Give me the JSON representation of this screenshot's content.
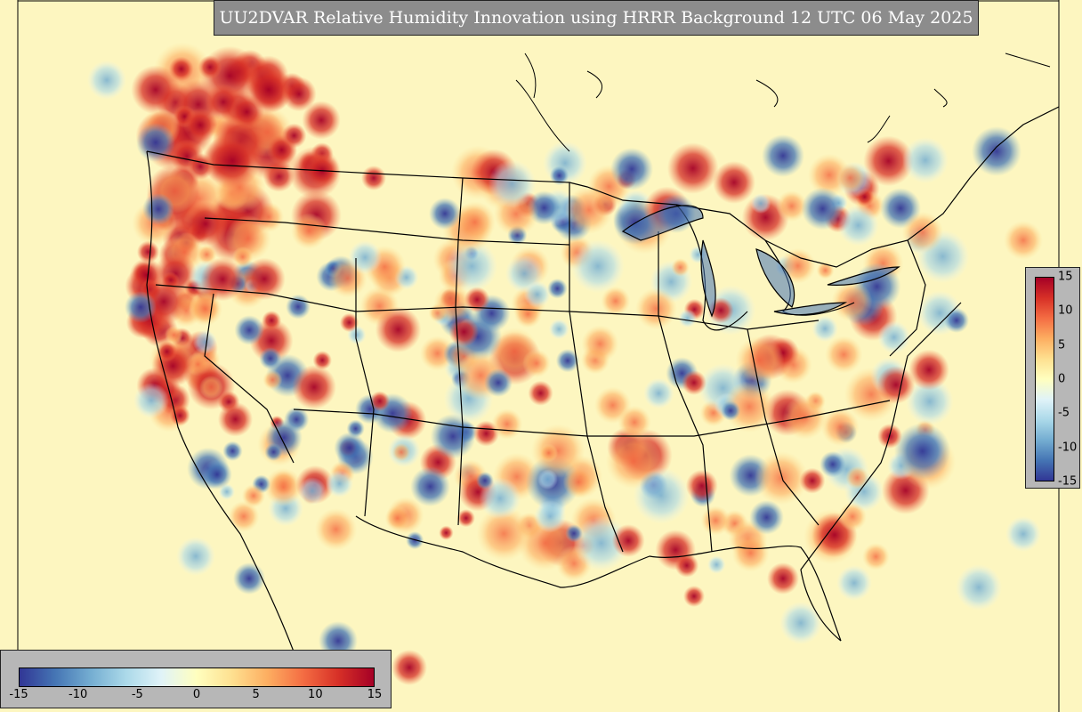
{
  "title": "UU2DVAR Relative Humidity Innovation using HRRR Background 12 UTC 06 May 2025",
  "colorbar": {
    "ticks_horizontal": [
      "-15",
      "-10",
      "-5",
      "0",
      "5",
      "10",
      "15"
    ],
    "ticks_vertical": [
      "15",
      "10",
      "5",
      "0",
      "-5",
      "-10",
      "-15"
    ],
    "range": [
      -15,
      15
    ],
    "colormap": [
      "#313695",
      "#4575b4",
      "#74add1",
      "#abd9e9",
      "#e0f3f8",
      "#ffffbf",
      "#fee090",
      "#fdae61",
      "#f46d43",
      "#d73027",
      "#a50026"
    ]
  },
  "map_colors": {
    "background": "#fdf6c0",
    "border": "#000000"
  }
}
